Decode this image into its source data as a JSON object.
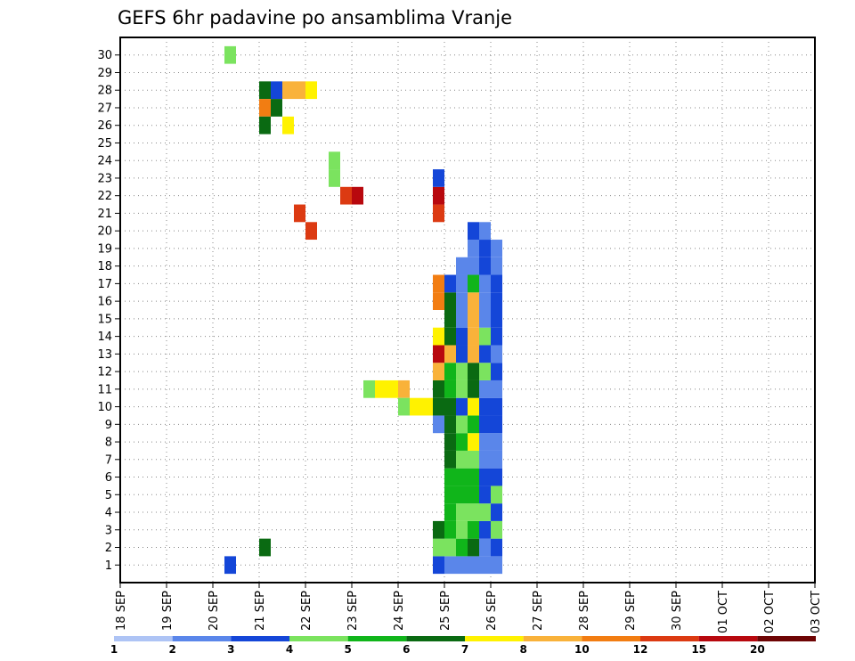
{
  "chart_data": {
    "type": "heatmap",
    "title": "GEFS 6hr padavine po ansamblima Vranje",
    "x_labels": [
      "18 SEP",
      "19 SEP",
      "20 SEP",
      "21 SEP",
      "22 SEP",
      "23 SEP",
      "24 SEP",
      "25 SEP",
      "26 SEP",
      "27 SEP",
      "28 SEP",
      "29 SEP",
      "30 SEP",
      "01 OCT",
      "02 OCT",
      "03 OCT"
    ],
    "y_labels": [
      "1",
      "2",
      "3",
      "4",
      "5",
      "6",
      "7",
      "8",
      "9",
      "10",
      "11",
      "12",
      "13",
      "14",
      "15",
      "16",
      "17",
      "18",
      "19",
      "20",
      "21",
      "22",
      "23",
      "24",
      "25",
      "26",
      "27",
      "28",
      "29",
      "30"
    ],
    "time_steps_per_day": 4,
    "grid": true,
    "legend_placement": "bottom",
    "colorbar": {
      "labels": [
        "1",
        "2",
        "3",
        "4",
        "5",
        "6",
        "7",
        "8",
        "10",
        "12",
        "15",
        "20"
      ],
      "colors": [
        "#aec4f5",
        "#5a86ea",
        "#1446d8",
        "#7be35f",
        "#10b51a",
        "#0a6a12",
        "#fff200",
        "#f9b23a",
        "#f27d12",
        "#dc3a12",
        "#b8080e",
        "#6e0404"
      ]
    },
    "cells": [
      [
        9,
        1,
        2
      ],
      [
        9,
        30,
        3
      ],
      [
        12,
        2,
        5
      ],
      [
        12,
        28,
        5
      ],
      [
        12,
        27,
        8
      ],
      [
        12,
        26,
        5
      ],
      [
        13,
        28,
        2
      ],
      [
        13,
        27,
        5
      ],
      [
        14,
        28,
        7
      ],
      [
        14,
        26,
        6
      ],
      [
        15,
        28,
        7
      ],
      [
        15,
        21,
        9
      ],
      [
        16,
        28,
        6
      ],
      [
        16,
        20,
        9
      ],
      [
        18,
        23,
        3
      ],
      [
        18,
        24,
        3
      ],
      [
        19,
        22,
        9
      ],
      [
        20,
        22,
        10
      ],
      [
        21,
        11,
        3
      ],
      [
        22,
        11,
        6
      ],
      [
        23,
        11,
        6
      ],
      [
        24,
        11,
        7
      ],
      [
        24,
        10,
        3
      ],
      [
        25,
        10,
        6
      ],
      [
        26,
        10,
        6
      ],
      [
        27,
        1,
        2
      ],
      [
        27,
        2,
        3
      ],
      [
        27,
        3,
        5
      ],
      [
        27,
        9,
        1
      ],
      [
        27,
        10,
        5
      ],
      [
        27,
        11,
        5
      ],
      [
        27,
        12,
        7
      ],
      [
        27,
        13,
        10
      ],
      [
        27,
        14,
        6
      ],
      [
        27,
        16,
        8
      ],
      [
        27,
        17,
        8
      ],
      [
        27,
        21,
        9
      ],
      [
        27,
        22,
        10
      ],
      [
        27,
        23,
        2
      ],
      [
        28,
        1,
        1
      ],
      [
        28,
        2,
        3
      ],
      [
        28,
        3,
        4
      ],
      [
        28,
        4,
        4
      ],
      [
        28,
        5,
        4
      ],
      [
        28,
        6,
        4
      ],
      [
        28,
        7,
        5
      ],
      [
        28,
        8,
        5
      ],
      [
        28,
        9,
        5
      ],
      [
        28,
        10,
        5
      ],
      [
        28,
        11,
        4
      ],
      [
        28,
        12,
        4
      ],
      [
        28,
        13,
        7
      ],
      [
        28,
        14,
        5
      ],
      [
        28,
        15,
        5
      ],
      [
        28,
        16,
        5
      ],
      [
        28,
        17,
        2
      ],
      [
        29,
        1,
        1
      ],
      [
        29,
        2,
        4
      ],
      [
        29,
        3,
        3
      ],
      [
        29,
        4,
        3
      ],
      [
        29,
        5,
        4
      ],
      [
        29,
        6,
        4
      ],
      [
        29,
        7,
        3
      ],
      [
        29,
        8,
        4
      ],
      [
        29,
        9,
        3
      ],
      [
        29,
        10,
        2
      ],
      [
        29,
        11,
        3
      ],
      [
        29,
        12,
        3
      ],
      [
        29,
        13,
        2
      ],
      [
        29,
        14,
        2
      ],
      [
        29,
        15,
        1
      ],
      [
        29,
        16,
        1
      ],
      [
        29,
        17,
        1
      ],
      [
        29,
        18,
        1
      ],
      [
        30,
        1,
        1
      ],
      [
        30,
        2,
        5
      ],
      [
        30,
        3,
        4
      ],
      [
        30,
        4,
        3
      ],
      [
        30,
        5,
        4
      ],
      [
        30,
        6,
        4
      ],
      [
        30,
        7,
        3
      ],
      [
        30,
        8,
        6
      ],
      [
        30,
        9,
        4
      ],
      [
        30,
        10,
        6
      ],
      [
        30,
        11,
        5
      ],
      [
        30,
        12,
        5
      ],
      [
        30,
        13,
        7
      ],
      [
        30,
        14,
        7
      ],
      [
        30,
        15,
        7
      ],
      [
        30,
        16,
        7
      ],
      [
        30,
        17,
        4
      ],
      [
        30,
        18,
        1
      ],
      [
        30,
        19,
        1
      ],
      [
        30,
        20,
        2
      ],
      [
        31,
        1,
        1
      ],
      [
        31,
        2,
        1
      ],
      [
        31,
        3,
        2
      ],
      [
        31,
        4,
        3
      ],
      [
        31,
        5,
        2
      ],
      [
        31,
        6,
        2
      ],
      [
        31,
        7,
        1
      ],
      [
        31,
        8,
        1
      ],
      [
        31,
        9,
        2
      ],
      [
        31,
        10,
        2
      ],
      [
        31,
        11,
        1
      ],
      [
        31,
        12,
        3
      ],
      [
        31,
        13,
        2
      ],
      [
        31,
        14,
        3
      ],
      [
        31,
        15,
        1
      ],
      [
        31,
        16,
        1
      ],
      [
        31,
        17,
        1
      ],
      [
        31,
        18,
        2
      ],
      [
        31,
        19,
        2
      ],
      [
        31,
        20,
        1
      ],
      [
        32,
        1,
        1
      ],
      [
        32,
        2,
        2
      ],
      [
        32,
        3,
        3
      ],
      [
        32,
        4,
        2
      ],
      [
        32,
        5,
        3
      ],
      [
        32,
        6,
        2
      ],
      [
        32,
        7,
        1
      ],
      [
        32,
        8,
        1
      ],
      [
        32,
        9,
        2
      ],
      [
        32,
        10,
        2
      ],
      [
        32,
        11,
        1
      ],
      [
        32,
        12,
        2
      ],
      [
        32,
        13,
        1
      ],
      [
        32,
        14,
        2
      ],
      [
        32,
        15,
        2
      ],
      [
        32,
        16,
        2
      ],
      [
        32,
        17,
        2
      ],
      [
        32,
        18,
        1
      ],
      [
        32,
        19,
        1
      ]
    ]
  },
  "unused_note": "cell = [time_step_index, member, color_class]"
}
